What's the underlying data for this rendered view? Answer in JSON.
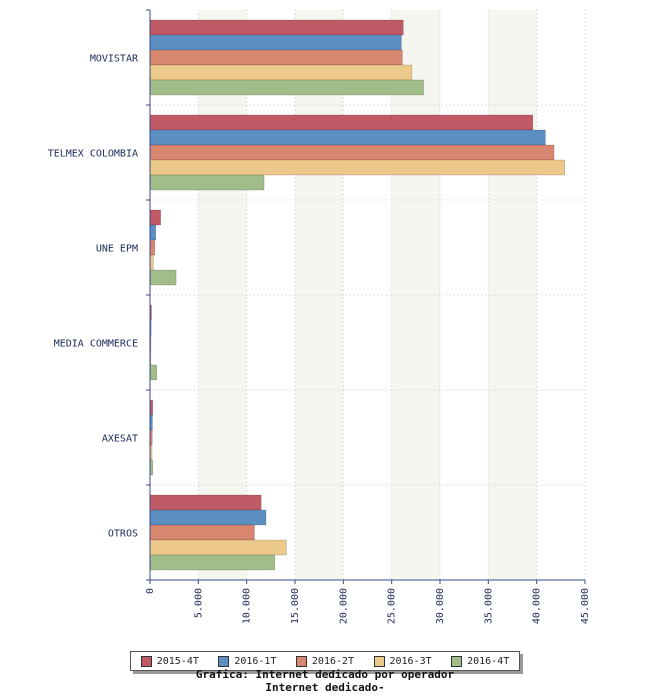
{
  "chart_data": {
    "type": "bar",
    "orientation": "horizontal",
    "categories": [
      "MOVISTAR",
      "TELMEX COLOMBIA",
      "UNE EPM",
      "MEDIA COMMERCE",
      "AXESAT",
      "OTROS"
    ],
    "series": [
      {
        "name": "2015-4T",
        "color": "#c05a66",
        "values": [
          26200,
          39600,
          1100,
          150,
          280,
          11500
        ]
      },
      {
        "name": "2016-1T",
        "color": "#5b8fc2",
        "values": [
          26000,
          40900,
          600,
          120,
          250,
          12000
        ]
      },
      {
        "name": "2016-2T",
        "color": "#d88670",
        "values": [
          26100,
          41800,
          500,
          100,
          230,
          10800
        ]
      },
      {
        "name": "2016-3T",
        "color": "#ecc98b",
        "values": [
          27100,
          42900,
          350,
          90,
          210,
          14100
        ]
      },
      {
        "name": "2016-4T",
        "color": "#a0bd8a",
        "values": [
          28300,
          11800,
          2700,
          700,
          280,
          12900
        ]
      }
    ],
    "xlim": [
      0,
      45000
    ],
    "xticks": [
      "0",
      "5.000",
      "10.000",
      "15.000",
      "20.000",
      "25.000",
      "30.000",
      "35.000",
      "40.000",
      "45.000"
    ],
    "title": "Grafica: Internet dedicado por operador",
    "subtitle": "Internet dedicado-",
    "grid": true,
    "legend_position": "bottom"
  }
}
